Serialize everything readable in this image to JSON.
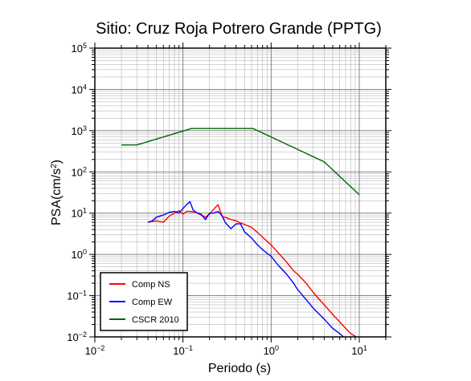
{
  "chart_data": {
    "type": "line",
    "title": "Sitio: Cruz Roja Potrero Grande (PPTG)",
    "xlabel": "Periodo (s)",
    "ylabel": "PSA(cm/s",
    "ylabel_sup": "2",
    "ylabel_close": ")",
    "x_scale": "log",
    "y_scale": "log",
    "xlim": [
      0.01,
      20
    ],
    "ylim": [
      0.01,
      100000
    ],
    "grid": true,
    "legend_position": "bottom-left",
    "x_ticks": [
      {
        "base": "10",
        "exp": "−2"
      },
      {
        "base": "10",
        "exp": "−1"
      },
      {
        "base": "10",
        "exp": "0"
      },
      {
        "base": "10",
        "exp": "1"
      }
    ],
    "y_ticks": [
      {
        "base": "10",
        "exp": "−2"
      },
      {
        "base": "10",
        "exp": "−1"
      },
      {
        "base": "10",
        "exp": "0"
      },
      {
        "base": "10",
        "exp": "1"
      },
      {
        "base": "10",
        "exp": "2"
      },
      {
        "base": "10",
        "exp": "3"
      },
      {
        "base": "10",
        "exp": "4"
      },
      {
        "base": "10",
        "exp": "5"
      }
    ],
    "series": [
      {
        "name": "Comp NS",
        "color": "#ff0000",
        "x": [
          0.04,
          0.045,
          0.05,
          0.06,
          0.07,
          0.08,
          0.09,
          0.1,
          0.11,
          0.12,
          0.14,
          0.16,
          0.18,
          0.2,
          0.22,
          0.25,
          0.28,
          0.3,
          0.35,
          0.4,
          0.45,
          0.5,
          0.6,
          0.7,
          0.8,
          1,
          1.2,
          1.5,
          1.8,
          2,
          2.5,
          3,
          4,
          5,
          6,
          7,
          8,
          10
        ],
        "y": [
          6,
          6.3,
          6.5,
          6,
          8.5,
          10,
          11.5,
          9.5,
          11,
          11,
          10.5,
          9,
          8,
          9.5,
          12,
          16,
          8,
          8,
          7,
          6.5,
          5.8,
          5.3,
          4.5,
          3.4,
          2.6,
          1.7,
          1.1,
          0.65,
          0.4,
          0.33,
          0.2,
          0.12,
          0.06,
          0.035,
          0.023,
          0.016,
          0.012,
          0.009
        ]
      },
      {
        "name": "Comp EW",
        "color": "#0000ff",
        "x": [
          0.04,
          0.045,
          0.05,
          0.06,
          0.07,
          0.08,
          0.09,
          0.1,
          0.11,
          0.12,
          0.13,
          0.14,
          0.16,
          0.18,
          0.2,
          0.22,
          0.25,
          0.28,
          0.3,
          0.35,
          0.4,
          0.45,
          0.5,
          0.6,
          0.7,
          0.8,
          1,
          1.2,
          1.5,
          1.8,
          2,
          2.5,
          3,
          4,
          5,
          6,
          7
        ],
        "y": [
          6,
          6.5,
          8,
          9,
          10.5,
          11,
          10,
          13,
          16,
          19,
          12,
          10.5,
          9.5,
          7,
          10,
          10,
          11,
          8.5,
          6,
          4.2,
          5.5,
          5.5,
          3.5,
          2.5,
          1.7,
          1.3,
          0.9,
          0.55,
          0.33,
          0.2,
          0.14,
          0.08,
          0.05,
          0.027,
          0.016,
          0.012,
          0.009
        ]
      },
      {
        "name": "CSCR 2010",
        "color": "#006400",
        "x": [
          0.02,
          0.03,
          0.125,
          0.625,
          4,
          10
        ],
        "y": [
          450,
          450,
          1125,
          1125,
          175,
          28
        ]
      }
    ]
  }
}
